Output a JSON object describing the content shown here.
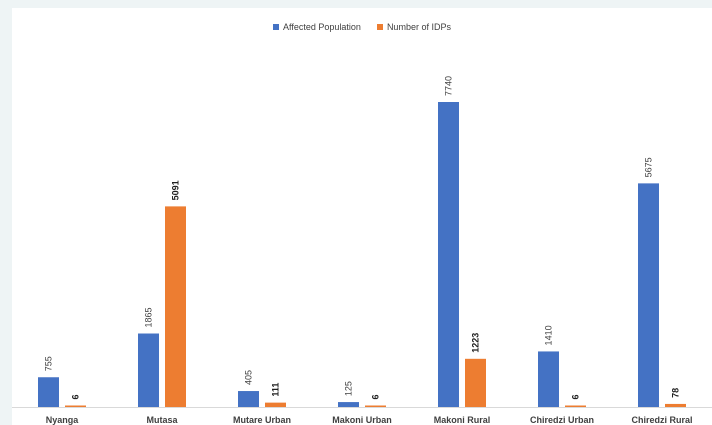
{
  "chart_data": {
    "type": "bar",
    "title": "",
    "xlabel": "",
    "ylabel": "",
    "categories": [
      "Nyanga",
      "Mutasa",
      "Mutare Urban",
      "Makoni Urban",
      "Makoni Rural",
      "Chiredzi Urban",
      "Chiredzi Rural"
    ],
    "series": [
      {
        "name": "Affected Population",
        "color": "#4472c4",
        "values": [
          755,
          1865,
          405,
          125,
          7740,
          1410,
          5675
        ],
        "labels_bold": false
      },
      {
        "name": "Number of IDPs",
        "color": "#ed7d31",
        "values": [
          6,
          5091,
          111,
          6,
          1223,
          6,
          78
        ],
        "labels_bold": true
      }
    ],
    "ylim": [
      0,
      7740
    ],
    "grid": false,
    "legend_position": "top-center"
  }
}
